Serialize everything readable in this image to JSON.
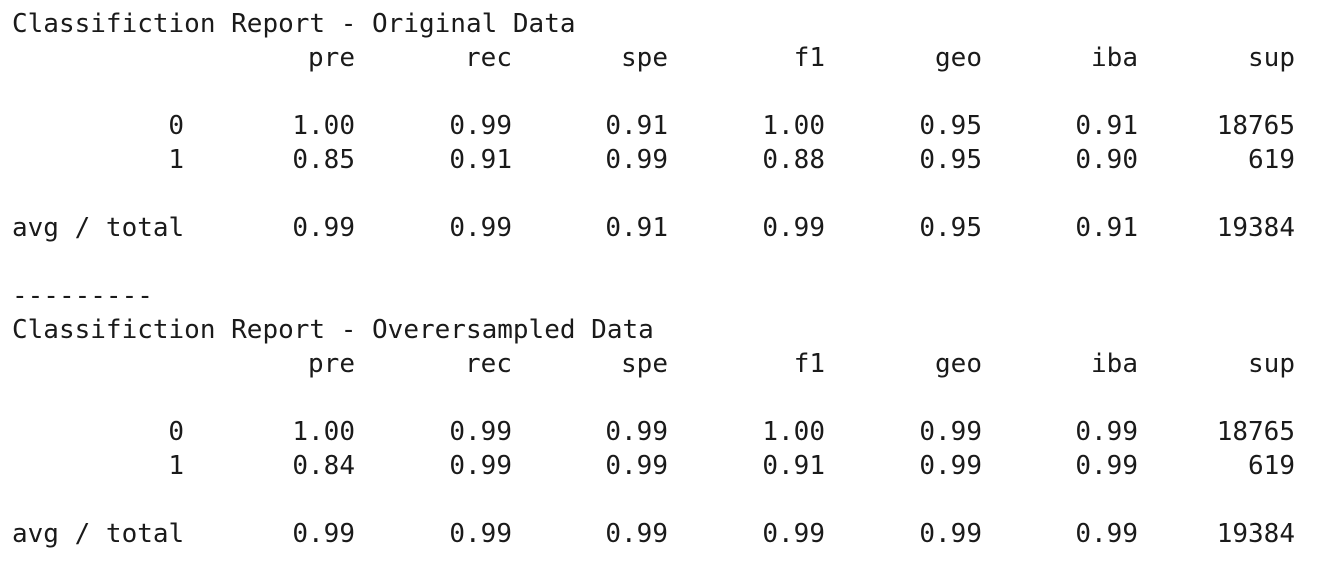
{
  "reports": [
    {
      "title": "Classifiction Report - Original Data",
      "headers": [
        "pre",
        "rec",
        "spe",
        "f1",
        "geo",
        "iba",
        "sup"
      ],
      "rows": [
        {
          "label": "0",
          "values": [
            "1.00",
            "0.99",
            "0.91",
            "1.00",
            "0.95",
            "0.91",
            "18765"
          ]
        },
        {
          "label": "1",
          "values": [
            "0.85",
            "0.91",
            "0.99",
            "0.88",
            "0.95",
            "0.90",
            "619"
          ]
        }
      ],
      "total": {
        "label": "avg / total",
        "values": [
          "0.99",
          "0.99",
          "0.91",
          "0.99",
          "0.95",
          "0.91",
          "19384"
        ]
      }
    },
    {
      "title": "Classifiction Report - Overersampled Data",
      "headers": [
        "pre",
        "rec",
        "spe",
        "f1",
        "geo",
        "iba",
        "sup"
      ],
      "rows": [
        {
          "label": "0",
          "values": [
            "1.00",
            "0.99",
            "0.99",
            "1.00",
            "0.99",
            "0.99",
            "18765"
          ]
        },
        {
          "label": "1",
          "values": [
            "0.84",
            "0.99",
            "0.99",
            "0.91",
            "0.99",
            "0.99",
            "619"
          ]
        }
      ],
      "total": {
        "label": "avg / total",
        "values": [
          "0.99",
          "0.99",
          "0.99",
          "0.99",
          "0.99",
          "0.99",
          "19384"
        ]
      }
    }
  ],
  "separator": "---------"
}
